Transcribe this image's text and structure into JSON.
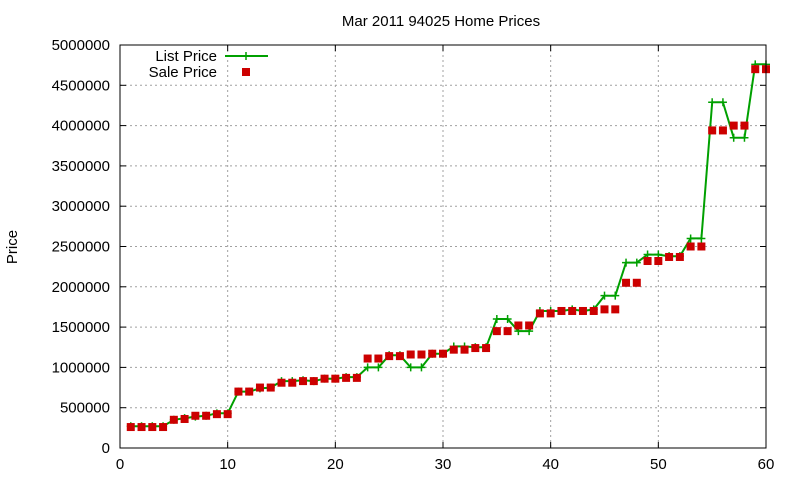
{
  "chart_data": {
    "type": "line",
    "title": "Mar 2011 94025 Home Prices",
    "xlabel": "",
    "ylabel": "Price",
    "xlim": [
      0,
      60
    ],
    "ylim": [
      0,
      5000000
    ],
    "x_ticks": [
      0,
      10,
      20,
      30,
      40,
      50,
      60
    ],
    "y_ticks": [
      0,
      500000,
      1000000,
      1500000,
      2000000,
      2500000,
      3000000,
      3500000,
      4000000,
      4500000,
      5000000
    ],
    "grid": true,
    "legend_position": "top-left",
    "x": [
      1,
      2,
      3,
      4,
      5,
      6,
      7,
      8,
      9,
      10,
      11,
      12,
      13,
      14,
      15,
      16,
      17,
      18,
      19,
      20,
      21,
      22,
      23,
      24,
      25,
      26,
      27,
      28,
      29,
      30,
      31,
      32,
      33,
      34,
      35,
      36,
      37,
      38,
      39,
      40,
      41,
      42,
      43,
      44,
      45,
      46,
      47,
      48,
      49,
      50,
      51,
      52,
      53,
      54,
      55,
      56,
      57,
      58,
      59,
      60
    ],
    "series": [
      {
        "name": "List Price",
        "color": "#00a000",
        "marker": "plus",
        "values": [
          270000,
          270000,
          270000,
          270000,
          350000,
          370000,
          390000,
          400000,
          430000,
          430000,
          700000,
          700000,
          740000,
          750000,
          830000,
          830000,
          840000,
          830000,
          860000,
          860000,
          880000,
          880000,
          1000000,
          1000000,
          1150000,
          1150000,
          1000000,
          1000000,
          1170000,
          1170000,
          1260000,
          1260000,
          1250000,
          1250000,
          1600000,
          1600000,
          1450000,
          1450000,
          1700000,
          1700000,
          1700000,
          1720000,
          1700000,
          1720000,
          1890000,
          1890000,
          2300000,
          2300000,
          2400000,
          2400000,
          2380000,
          2380000,
          2600000,
          2600000,
          4290000,
          4290000,
          3850000,
          3850000,
          4760000,
          4760000
        ]
      },
      {
        "name": "Sale Price",
        "color": "#cc0000",
        "marker": "square",
        "values": [
          260000,
          260000,
          260000,
          260000,
          350000,
          360000,
          400000,
          400000,
          420000,
          420000,
          700000,
          700000,
          750000,
          750000,
          810000,
          810000,
          830000,
          830000,
          860000,
          860000,
          870000,
          870000,
          1110000,
          1110000,
          1140000,
          1140000,
          1160000,
          1160000,
          1170000,
          1170000,
          1220000,
          1220000,
          1240000,
          1240000,
          1450000,
          1450000,
          1520000,
          1520000,
          1670000,
          1670000,
          1700000,
          1700000,
          1700000,
          1700000,
          1720000,
          1720000,
          2050000,
          2050000,
          2320000,
          2320000,
          2370000,
          2370000,
          2500000,
          2500000,
          3940000,
          3940000,
          4000000,
          4000000,
          4700000,
          4700000
        ]
      }
    ]
  }
}
